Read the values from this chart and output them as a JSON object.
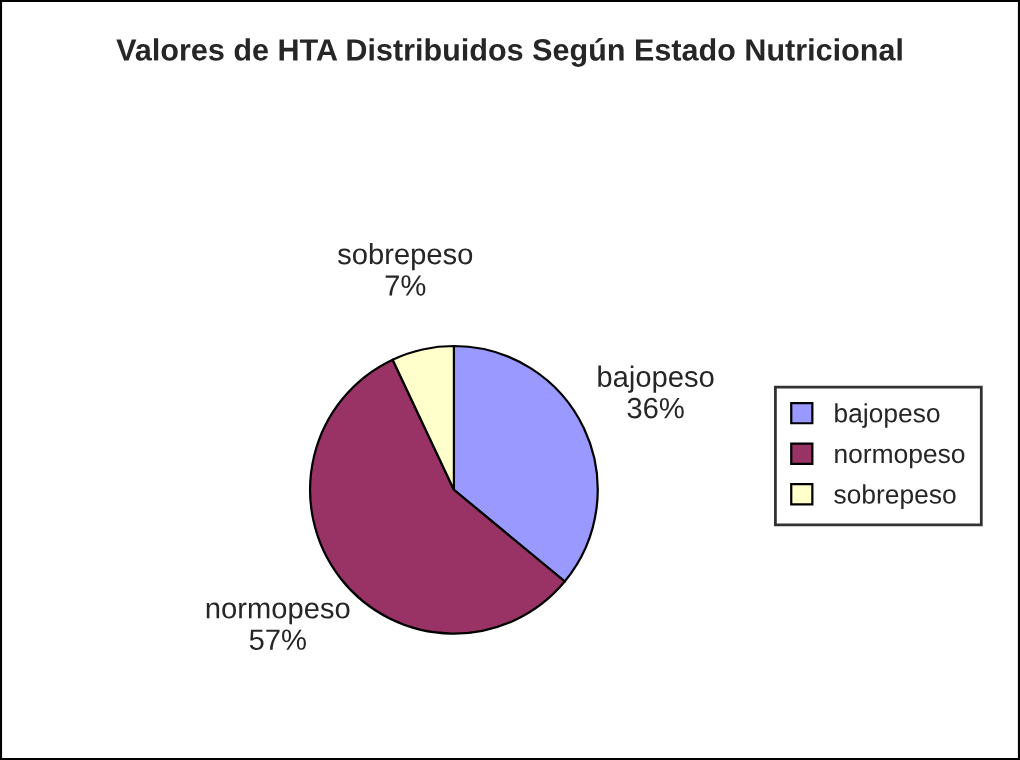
{
  "chart_data": {
    "type": "pie",
    "title": "Valores de HTA Distribuidos Según Estado Nutricional",
    "categories": [
      "bajopeso",
      "normopeso",
      "sobrepeso"
    ],
    "values": [
      36,
      57,
      7
    ],
    "value_labels": [
      "36%",
      "57%",
      "7%"
    ],
    "colors": [
      "#9999ff",
      "#993366",
      "#ffffcc"
    ],
    "legend": "right"
  }
}
